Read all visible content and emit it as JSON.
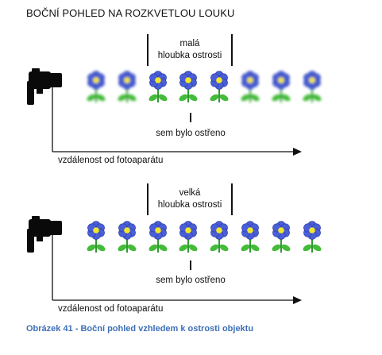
{
  "figure": {
    "heading": "BOČNÍ POHLED NA ROZKVETLOU LOUKU",
    "caption": "Obrázek 41 - Boční pohled vzhledem k ostrosti objektu"
  },
  "panels": [
    {
      "dof_label_line1": "malá",
      "dof_label_line2": "hloubka ostrosti",
      "focus_label": "sem bylo ostřeno",
      "axis_label": "vzdálenost od fotoaparátu",
      "flowers_sharp": [
        false,
        false,
        true,
        true,
        true,
        false,
        false,
        false
      ]
    },
    {
      "dof_label_line1": "velká",
      "dof_label_line2": "hloubka ostrosti",
      "focus_label": "sem bylo ostřeno",
      "axis_label": "vzdálenost od fotoaparátu",
      "flowers_sharp": [
        true,
        true,
        true,
        true,
        true,
        true,
        true,
        true
      ]
    }
  ],
  "colors": {
    "petal": "#4a5ed6",
    "petal_edge": "#2a3aa8",
    "flower_center": "#f2e82a",
    "stem": "#2f9a2f",
    "leaf": "#44bb3a",
    "line": "#111111",
    "camera": "#0a0a0a",
    "caption": "#3d6fb6"
  }
}
